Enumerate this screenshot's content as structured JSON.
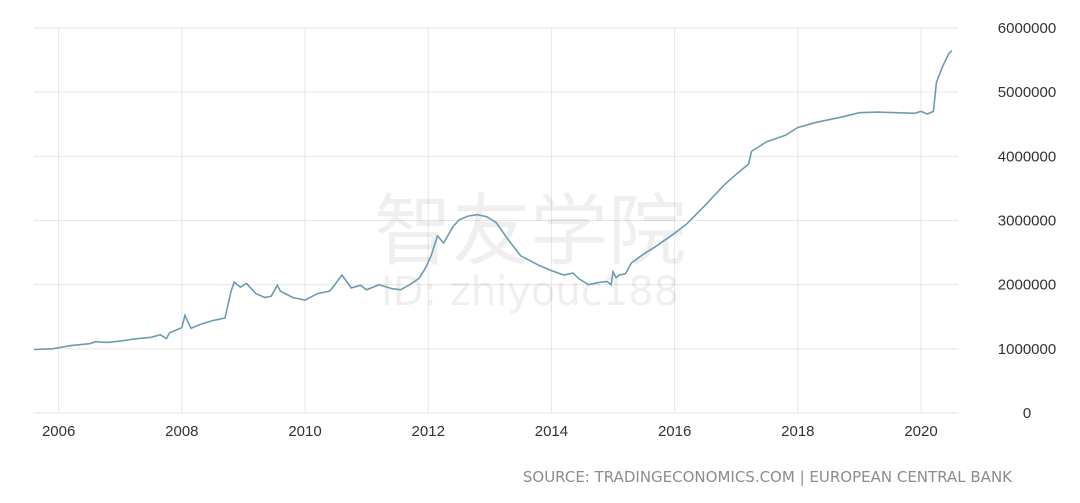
{
  "chart_data": {
    "type": "line",
    "title": "",
    "xlabel": "",
    "ylabel": "",
    "xlim": [
      2005.6,
      2020.6
    ],
    "ylim": [
      0,
      6000000
    ],
    "grid": true,
    "x_ticks": [
      {
        "value": 2006,
        "label": "2006"
      },
      {
        "value": 2008,
        "label": "2008"
      },
      {
        "value": 2010,
        "label": "2010"
      },
      {
        "value": 2012,
        "label": "2012"
      },
      {
        "value": 2014,
        "label": "2014"
      },
      {
        "value": 2016,
        "label": "2016"
      },
      {
        "value": 2018,
        "label": "2018"
      },
      {
        "value": 2020,
        "label": "2020"
      }
    ],
    "y_ticks": [
      {
        "value": 0,
        "label": "0"
      },
      {
        "value": 1000000,
        "label": "1000000"
      },
      {
        "value": 2000000,
        "label": "2000000"
      },
      {
        "value": 3000000,
        "label": "3000000"
      },
      {
        "value": 4000000,
        "label": "4000000"
      },
      {
        "value": 5000000,
        "label": "5000000"
      },
      {
        "value": 6000000,
        "label": "6000000"
      }
    ],
    "series": [
      {
        "color": "#6d9bb1",
        "x": [
          2005.6,
          2005.9,
          2006.2,
          2006.5,
          2006.6,
          2006.8,
          2007.0,
          2007.2,
          2007.5,
          2007.65,
          2007.75,
          2007.8,
          2007.9,
          2008.0,
          2008.05,
          2008.15,
          2008.3,
          2008.5,
          2008.6,
          2008.7,
          2008.8,
          2008.85,
          2008.95,
          2009.05,
          2009.2,
          2009.35,
          2009.45,
          2009.55,
          2009.6,
          2009.8,
          2010.0,
          2010.2,
          2010.4,
          2010.5,
          2010.6,
          2010.75,
          2010.9,
          2011.0,
          2011.2,
          2011.4,
          2011.55,
          2011.7,
          2011.85,
          2011.95,
          2012.05,
          2012.15,
          2012.25,
          2012.4,
          2012.5,
          2012.65,
          2012.8,
          2012.95,
          2013.1,
          2013.3,
          2013.5,
          2013.8,
          2014.0,
          2014.2,
          2014.35,
          2014.45,
          2014.6,
          2014.75,
          2014.9,
          2014.97,
          2015.0,
          2015.05,
          2015.1,
          2015.2,
          2015.3,
          2015.5,
          2015.7,
          2016.0,
          2016.2,
          2016.5,
          2016.8,
          2017.0,
          2017.2,
          2017.25,
          2017.5,
          2017.8,
          2018.0,
          2018.3,
          2018.7,
          2019.0,
          2019.3,
          2019.6,
          2019.9,
          2020.0,
          2020.1,
          2020.2,
          2020.25,
          2020.35,
          2020.45,
          2020.5
        ],
        "y": [
          990000,
          1000000,
          1050000,
          1080000,
          1110000,
          1100000,
          1120000,
          1150000,
          1180000,
          1220000,
          1160000,
          1250000,
          1290000,
          1330000,
          1520000,
          1320000,
          1380000,
          1440000,
          1460000,
          1480000,
          1900000,
          2040000,
          1960000,
          2020000,
          1860000,
          1800000,
          1820000,
          1990000,
          1900000,
          1800000,
          1760000,
          1860000,
          1900000,
          2020000,
          2150000,
          1950000,
          1990000,
          1920000,
          2000000,
          1940000,
          1920000,
          2000000,
          2100000,
          2250000,
          2460000,
          2760000,
          2650000,
          2900000,
          3010000,
          3070000,
          3090000,
          3060000,
          2970000,
          2700000,
          2450000,
          2300000,
          2220000,
          2150000,
          2180000,
          2090000,
          2000000,
          2030000,
          2050000,
          2000000,
          2200000,
          2110000,
          2150000,
          2170000,
          2340000,
          2480000,
          2600000,
          2800000,
          2950000,
          3240000,
          3550000,
          3720000,
          3880000,
          4080000,
          4230000,
          4330000,
          4450000,
          4530000,
          4610000,
          4680000,
          4690000,
          4680000,
          4670000,
          4700000,
          4660000,
          4700000,
          5150000,
          5400000,
          5600000,
          5650000
        ]
      }
    ],
    "source": "SOURCE: TRADINGECONOMICS.COM | EUROPEAN CENTRAL BANK",
    "watermark": {
      "line1": "智友学院",
      "line2": "ID: zhiyouc188"
    }
  }
}
